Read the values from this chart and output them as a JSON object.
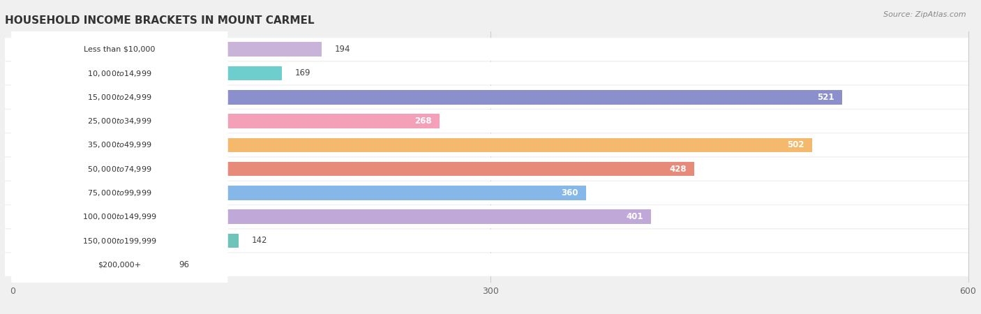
{
  "title": "HOUSEHOLD INCOME BRACKETS IN MOUNT CARMEL",
  "source": "Source: ZipAtlas.com",
  "categories": [
    "Less than $10,000",
    "$10,000 to $14,999",
    "$15,000 to $24,999",
    "$25,000 to $34,999",
    "$35,000 to $49,999",
    "$50,000 to $74,999",
    "$75,000 to $99,999",
    "$100,000 to $149,999",
    "$150,000 to $199,999",
    "$200,000+"
  ],
  "values": [
    194,
    169,
    521,
    268,
    502,
    428,
    360,
    401,
    142,
    96
  ],
  "bar_colors": [
    "#c9b3d9",
    "#6ecece",
    "#8b8fcc",
    "#f4a0b8",
    "#f5b96e",
    "#e88a7a",
    "#85b8e8",
    "#c0a8d8",
    "#6ec4b8",
    "#b8b8e8"
  ],
  "xlim": [
    0,
    600
  ],
  "xticks": [
    0,
    300,
    600
  ],
  "bar_height": 0.6,
  "label_inside_threshold": 220,
  "background_color": "#f0f0f0",
  "row_bg_color": "#ffffff",
  "title_fontsize": 11,
  "source_fontsize": 8,
  "value_fontsize": 8.5,
  "tick_fontsize": 9,
  "category_fontsize": 8
}
